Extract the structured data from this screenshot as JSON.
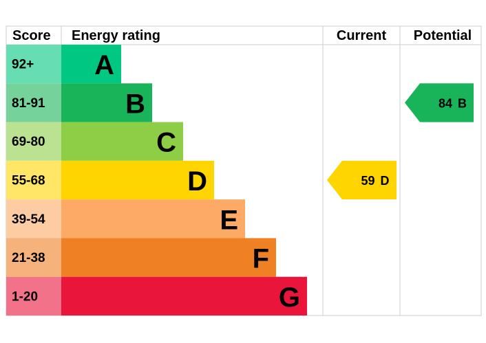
{
  "header": {
    "score": "Score",
    "rating": "Energy rating",
    "current": "Current",
    "potential": "Potential"
  },
  "bands": [
    {
      "score": "92+",
      "letter": "A",
      "color": "#00c781"
    },
    {
      "score": "81-91",
      "letter": "B",
      "color": "#19b459"
    },
    {
      "score": "69-80",
      "letter": "C",
      "color": "#8dce46"
    },
    {
      "score": "55-68",
      "letter": "D",
      "color": "#ffd500"
    },
    {
      "score": "39-54",
      "letter": "E",
      "color": "#fcaa65"
    },
    {
      "score": "21-38",
      "letter": "F",
      "color": "#ef8023"
    },
    {
      "score": "1-20",
      "letter": "G",
      "color": "#e9153b"
    }
  ],
  "current": {
    "value": 59,
    "letter": "D"
  },
  "potential": {
    "value": 84,
    "letter": "B"
  }
}
